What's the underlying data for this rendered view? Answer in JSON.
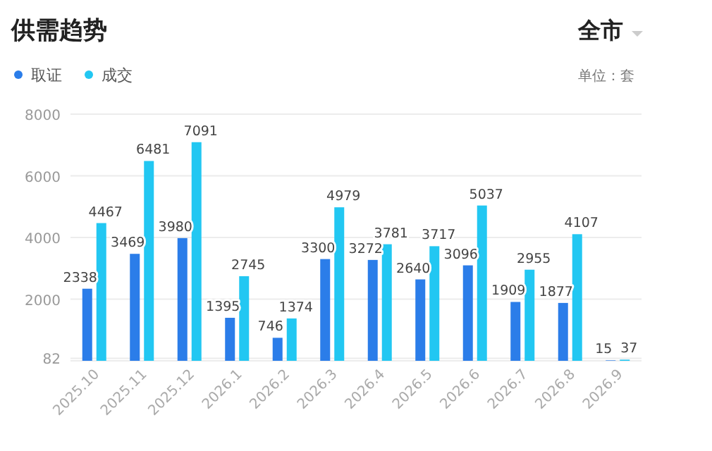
{
  "chart_data": {
    "type": "bar",
    "title": "供需趋势",
    "annotations": [
      "全市",
      "单位：套"
    ],
    "categories": [
      "2025.10",
      "2025.11",
      "2025.12",
      "2026.1",
      "2026.2",
      "2026.3",
      "2026.4",
      "2026.5",
      "2026.6",
      "2026.7",
      "2026.8",
      "2026.9"
    ],
    "series": [
      {
        "name": "取证",
        "color": "#2b7de9",
        "values": [
          2338,
          3469,
          3980,
          1395,
          746,
          3300,
          3272,
          2640,
          3096,
          1909,
          1877,
          15
        ]
      },
      {
        "name": "成交",
        "color": "#22c7f2",
        "values": [
          4467,
          6481,
          7091,
          2745,
          1374,
          4979,
          3781,
          3717,
          5037,
          2955,
          4107,
          37
        ]
      }
    ],
    "ylim": [
      0,
      8000
    ],
    "yticks": [
      {
        "value": 82,
        "label": "82"
      },
      2000,
      4000,
      6000,
      8000
    ],
    "grid": "y",
    "legend": "top left",
    "data_labels": true
  }
}
